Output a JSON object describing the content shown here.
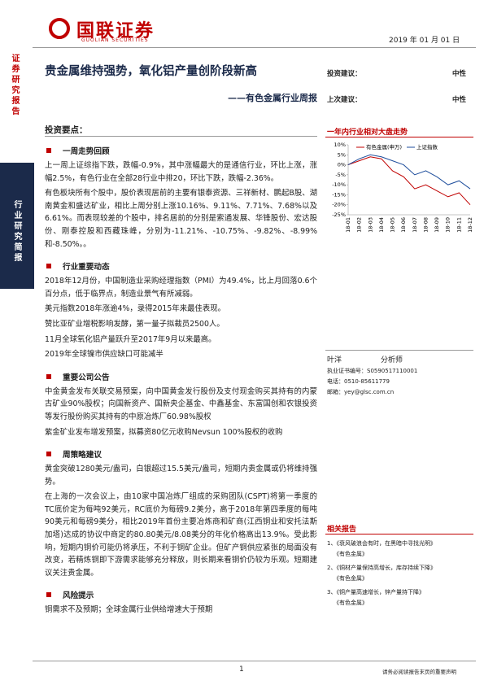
{
  "header": {
    "logo": "国联证券",
    "logo_en": "GUOLIAN SECURITIES",
    "date": "2019 年 01 月 01 日"
  },
  "sidebar": {
    "top": "证券研究报告",
    "box": "行业研究简报"
  },
  "title": "贵金属维持强势，氧化铝产量创阶段新高",
  "subtitle": "——有色金属行业周报",
  "rating": {
    "current_label": "投资建议：",
    "current": "中性",
    "previous_label": "上次建议：",
    "previous": "中性"
  },
  "summary_title": "投资要点：",
  "sections": [
    {
      "heading": "一周走势回顾",
      "paragraphs": [
        "上一周上证综指下跌，跌幅-0.9%，其中涨幅最大的是通信行业，环比上涨，涨幅2.5%，有色行业在全部28行业中排20，环比下跌，跌幅-2.36%。",
        "有色板块所有个股中，股价表现居前的主要有银泰资源、三祥新材、鹏起B股、湖南黄金和盛达矿业，相比上周分别上涨10.16%、9.11%、7.71%、7.68%以及6.61%。而表现较差的个股中，排名居前的分别是索通发展、华锋股份、宏达股份、刚泰控股和西藏珠峰，分别为-11.21%、-10.75%、-9.82%、-8.99%和-8.50%。。"
      ]
    },
    {
      "heading": "行业重要动态",
      "paragraphs": [
        "2018年12月份，中国制造业采购经理指数（PMI）为49.4%，比上月回落0.6个百分点，低于临界点，制造业景气有所减弱。",
        "美元指数2018年涨逾4%，录得2015年来最佳表现。",
        "赞比亚矿业增税影响发酵，第一量子拟裁员2500人。",
        "11月全球氧化铝产量跃升至2017年9月以来最高。",
        "2019年全球镍市供应缺口可能减半"
      ]
    },
    {
      "heading": "重要公司公告",
      "paragraphs": [
        "中金黄金发布关联交易预案，向中国黄金发行股份及支付现金购买其持有的内蒙古矿业90%股权；向国新资产、国新央企基金、中鑫基金、东富国创和农银投资等发行股份购买其持有的中原冶炼厂60.98%股权",
        "紫金矿业发布增发预案，拟募资80亿元收购Nevsun 100%股权的收购"
      ]
    },
    {
      "heading": "周策略建议",
      "paragraphs": [
        "黄金突破1280美元/盎司，白银超过15.5美元/盎司，短期内贵金属或仍将维持强势。",
        "在上海的一次会议上，由10家中国冶炼厂组成的采购团队(CSPT)将第一季度的TC底价定为每吨92美元，RC底价为每磅9.2美分，高于2018年第四季度的每吨90美元和每磅9美分，相比2019年首份主要冶炼商和矿商(江西铜业和安托法斯加塔)达成的协议中商定的80.80美元/8.08美分的年化价格高出13.9%。受此影响，短期内铜价可能仍将承压，不利于铜矿企业。但矿产铜供应紧张的局面没有改变，若精炼铜即下游需求能够充分释放，则长期来看铜价仍较为乐观。短期建议关注贵金属。"
      ]
    },
    {
      "heading": "风险提示",
      "paragraphs": [
        "铜需求不及预期；全球金属行业供给增速大于预期"
      ]
    }
  ],
  "chart": {
    "type": "line",
    "title": "一年内行业相对大盘走势",
    "categories": [
      "18-01",
      "18-02",
      "18-03",
      "18-04",
      "18-05",
      "18-06",
      "18-07",
      "18-08",
      "18-09",
      "18-10",
      "18-11",
      "18-12"
    ],
    "series": [
      {
        "name": "有色金属(申万)",
        "color": "#c00000",
        "values": [
          0,
          2,
          4,
          3,
          -3,
          -6,
          -12,
          -10,
          -13,
          -16,
          -14,
          -20
        ]
      },
      {
        "name": "上证指数",
        "color": "#1f4e9c",
        "values": [
          0,
          3,
          5,
          4,
          2,
          0,
          -5,
          -3,
          -6,
          -10,
          -8,
          -12
        ]
      }
    ],
    "ylim": [
      -25,
      10
    ],
    "yticks": [
      {
        "value": 10,
        "label": "10%"
      },
      {
        "value": 5,
        "label": "5%"
      },
      {
        "value": 0,
        "label": "0%"
      },
      {
        "value": -5,
        "label": "-5%"
      },
      {
        "value": -10,
        "label": "-10%"
      },
      {
        "value": -15,
        "label": "-15%"
      },
      {
        "value": -20,
        "label": "-20%"
      },
      {
        "value": -25,
        "label": "-25%"
      }
    ]
  },
  "analyst": {
    "name": "叶洋",
    "role": "分析师",
    "cert": "执业证书编号：S0590517110001",
    "phone": "电话：0510-85611779",
    "email": "邮箱：yey@glsc.com.cn"
  },
  "related": {
    "title": "相关报告",
    "items": [
      {
        "title": "1、《衰风破浪会有时，在黑暗中寻找光明》",
        "source": "《有色金属》"
      },
      {
        "title": "2、《铜材产量保持高增长，库存持续下降》",
        "source": "《有色金属》"
      },
      {
        "title": "3、《铜产量高速增长，锌产量持下降》",
        "source": "《有色金属》"
      }
    ]
  },
  "footer": {
    "page": "1",
    "notice": "请务必阅读报告末页的重要声明"
  }
}
